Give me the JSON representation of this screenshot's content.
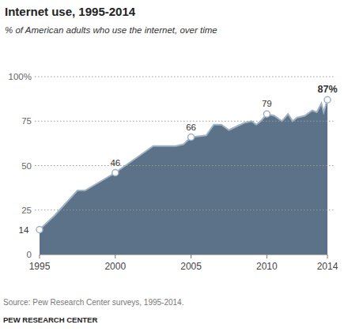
{
  "chart_data": {
    "type": "area",
    "title": "Internet use, 1995-2014",
    "subtitle": "% of American adults who use the internet, over time",
    "source": "Source: Pew Research Center surveys, 1995-2014.",
    "credit": "PEW RESEARCH CENTER",
    "x": [
      1995,
      1996,
      1997.5,
      1998,
      2000,
      2001,
      2002,
      2002.5,
      2003,
      2004,
      2004.5,
      2005,
      2006,
      2006.5,
      2007,
      2007.5,
      2008,
      2008.5,
      2009,
      2009.3,
      2009.6,
      2010,
      2010.5,
      2011,
      2011.4,
      2011.7,
      2012,
      2012.5,
      2013,
      2013.3,
      2013.6,
      2013.75,
      2014
    ],
    "values": [
      14,
      22,
      36,
      36,
      46,
      52,
      58,
      61,
      61,
      61,
      62,
      66,
      67,
      73,
      73,
      70,
      72,
      74,
      75,
      73,
      75,
      79,
      78,
      75,
      79,
      75,
      77,
      78,
      81,
      80,
      85,
      80,
      87
    ],
    "value_labels": [
      "14",
      null,
      null,
      null,
      "46",
      null,
      null,
      null,
      null,
      null,
      null,
      "66",
      null,
      null,
      null,
      null,
      null,
      null,
      null,
      null,
      null,
      "79",
      null,
      null,
      null,
      null,
      null,
      null,
      null,
      null,
      null,
      null,
      "87%"
    ],
    "data_labels": true,
    "color": "#5b7289",
    "xlim": [
      1995,
      2014
    ],
    "xticks": [
      1995,
      2000,
      2005,
      2010,
      2014
    ],
    "ylim": [
      0,
      100
    ],
    "yticks": [
      0,
      25,
      50,
      75,
      {
        "value": 100,
        "label": "100%"
      }
    ],
    "grid": true
  }
}
